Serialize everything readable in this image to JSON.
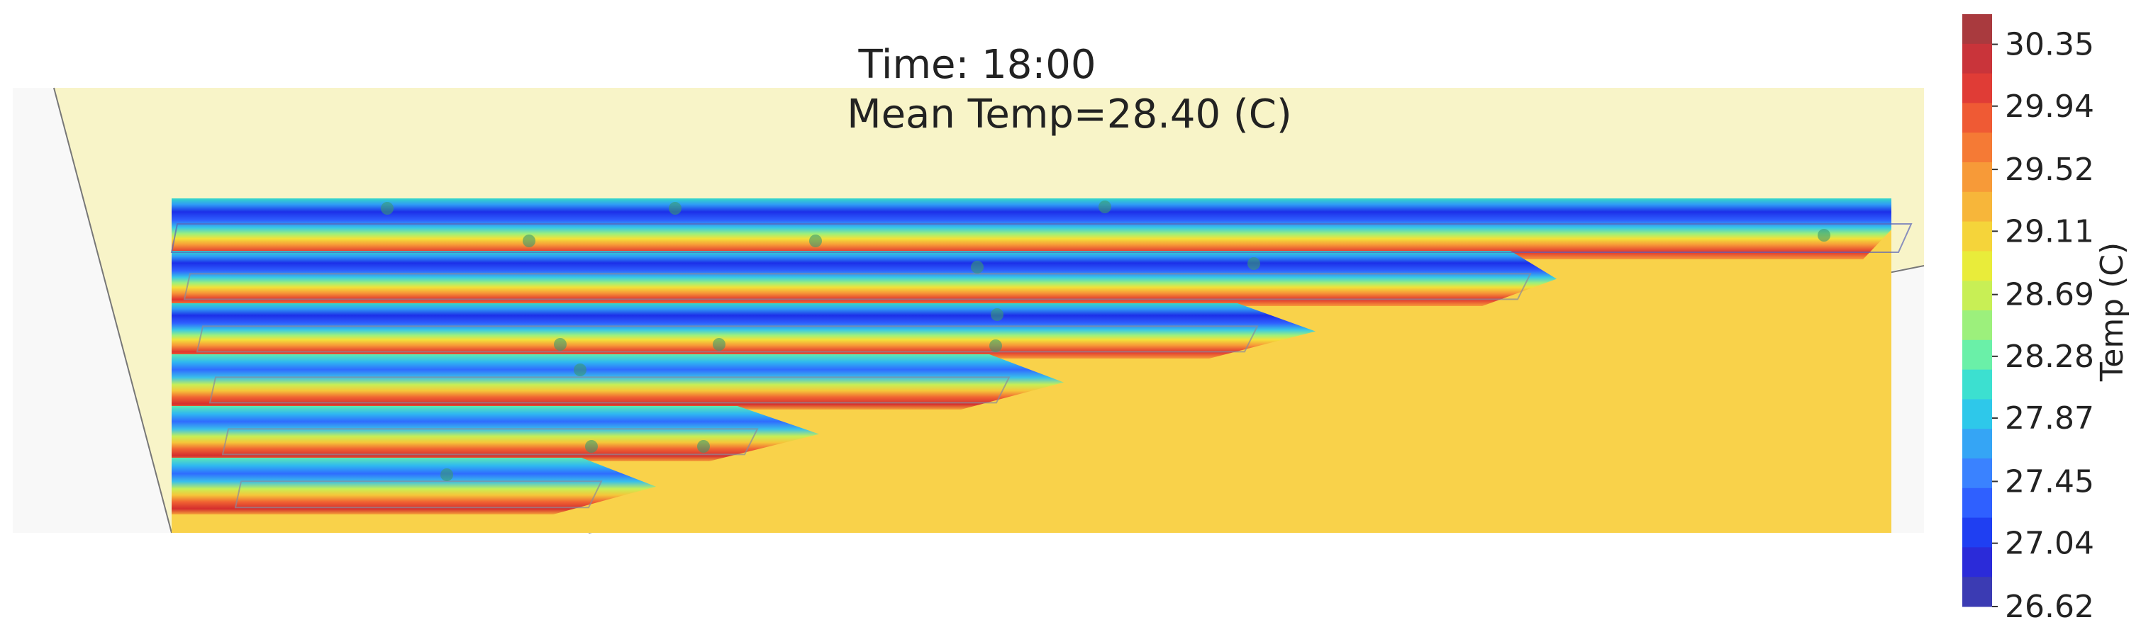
{
  "chart_data": {
    "type": "heatmap",
    "title_line1": "Time: 18:00",
    "title_line2": "Mean Temp=28.40 (C)",
    "colorbar": {
      "label": "Temp (C)",
      "ticks": [
        "30.35",
        "29.94",
        "29.52",
        "29.11",
        "28.69",
        "28.28",
        "27.87",
        "27.45",
        "27.04",
        "26.62"
      ],
      "tick_values": [
        30.35,
        29.94,
        29.52,
        29.11,
        28.69,
        28.28,
        27.87,
        27.45,
        27.04,
        26.62
      ],
      "vmin": 26.62,
      "vmax": 30.55,
      "colors": [
        "#3b3bb3",
        "#2b2bd9",
        "#1f3ff2",
        "#2f60ff",
        "#3a82ff",
        "#35a5f5",
        "#2ec8ea",
        "#3ce0d0",
        "#6af0a8",
        "#9cf07c",
        "#c8ef55",
        "#e9ec3a",
        "#f5d43a",
        "#f7b63a",
        "#f79a38",
        "#f57a35",
        "#ef5a34",
        "#e03c36",
        "#c9343a",
        "#a93a3e"
      ]
    },
    "stripes": {
      "count": 6,
      "profile": "cold-to-hot gradient across each stripe (blue core, cyan/green, yellow, red lower edge)",
      "background_temp_color": "#f9d24a"
    },
    "sensors": 17
  }
}
